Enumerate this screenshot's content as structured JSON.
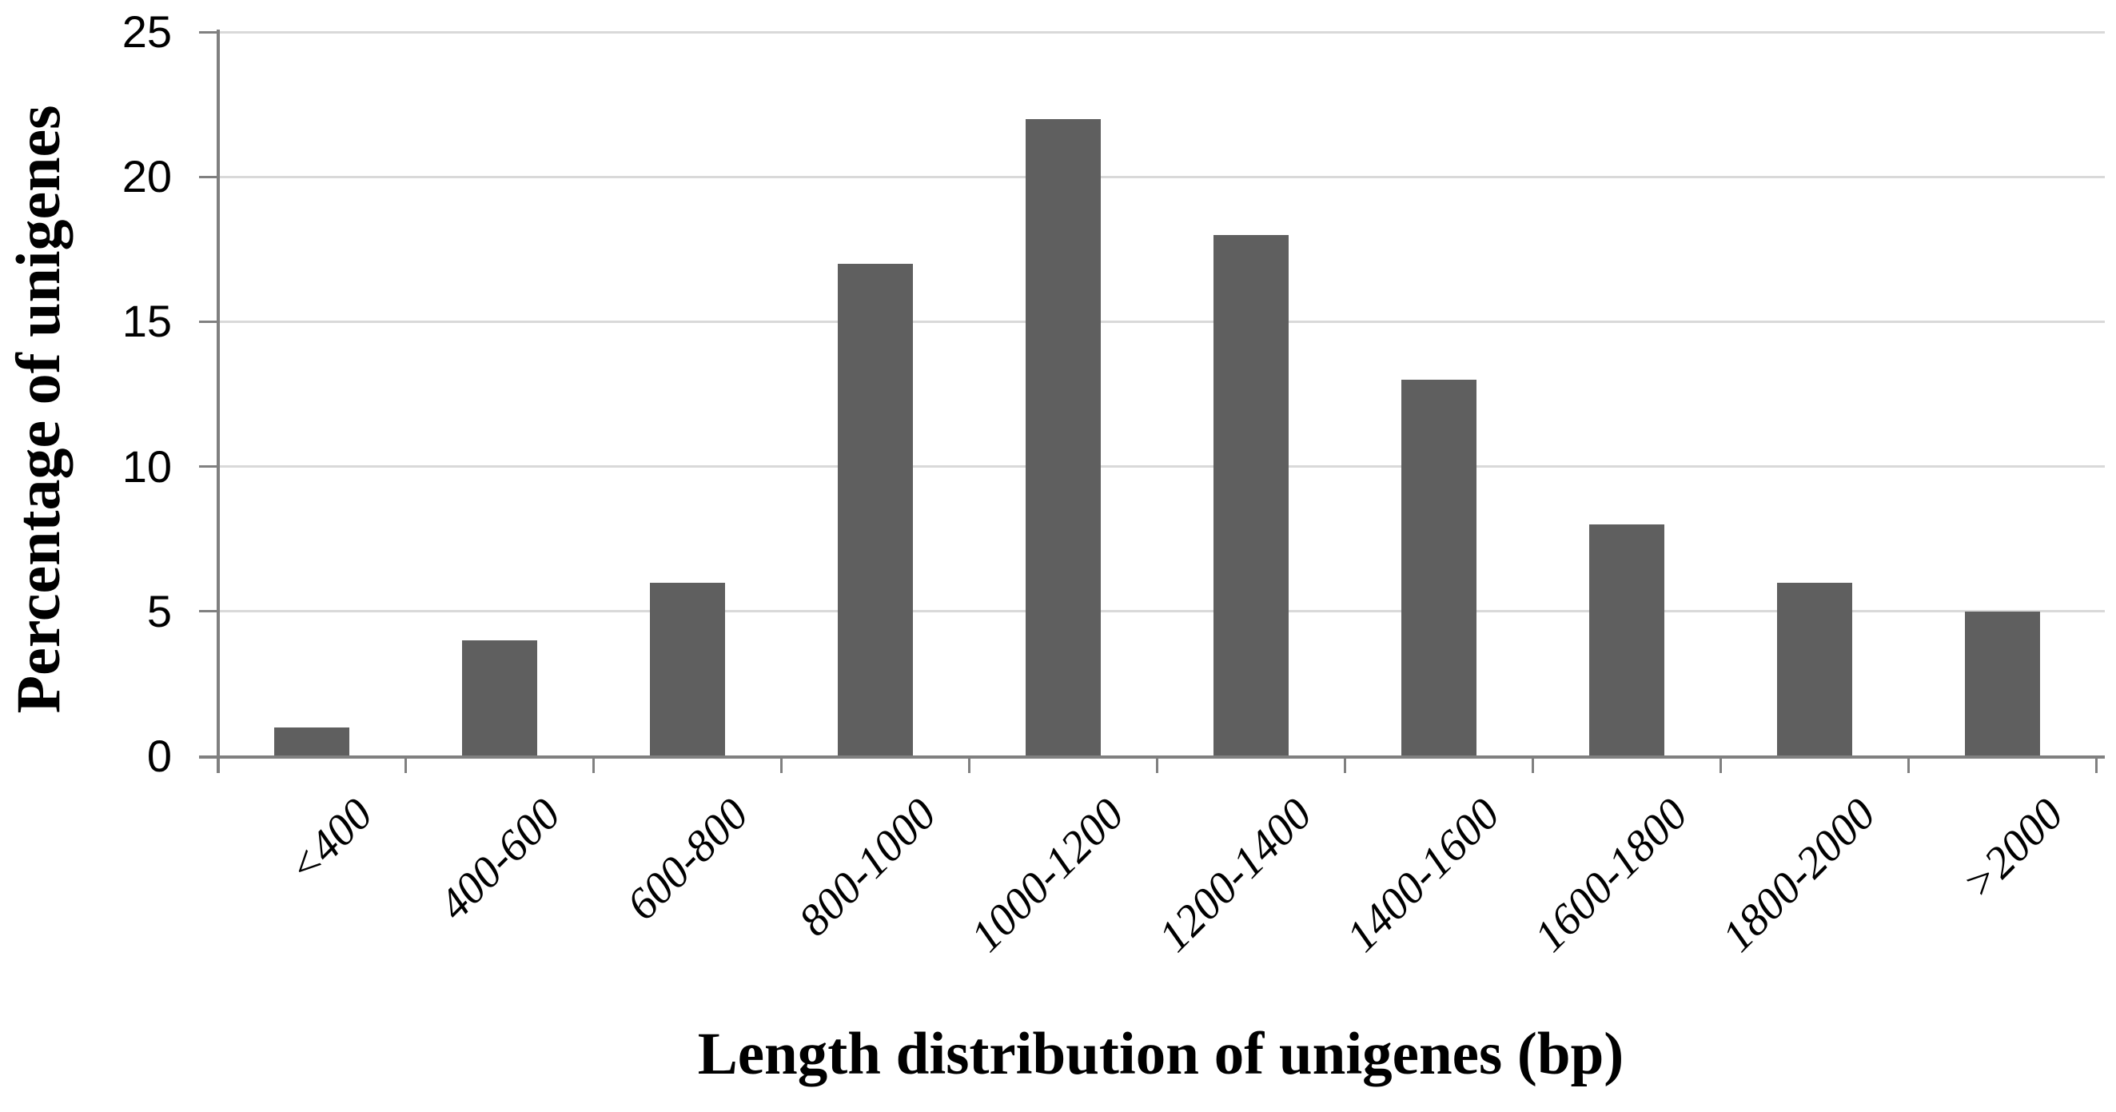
{
  "chart_data": {
    "type": "bar",
    "title": "",
    "xlabel": "Length distribution of unigenes (bp)",
    "ylabel": "Percentage of unigenes",
    "categories": [
      "<400",
      "400-600",
      "600-800",
      "800-1000",
      "1000-1200",
      "1200-1400",
      "1400-1600",
      "1600-1800",
      "1800-2000",
      ">2000"
    ],
    "values": [
      1,
      4,
      6,
      17,
      22,
      18,
      13,
      8,
      6,
      5
    ],
    "yticks": [
      0,
      5,
      10,
      15,
      20,
      25
    ],
    "ylim": [
      0,
      25
    ],
    "grid": "horizontal-only",
    "legend_position": "none",
    "bar_color": "#5f5f5f",
    "axis_color": "#808080",
    "gridline_color": "#d9d9d9",
    "text_color": "#000000"
  }
}
